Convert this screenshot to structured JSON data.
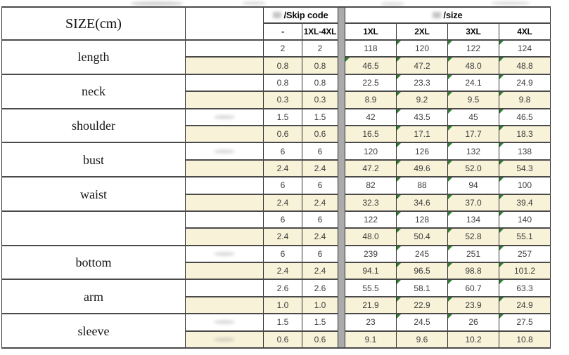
{
  "chart_data": {
    "type": "table",
    "title": "SIZE(cm)",
    "header": {
      "size_label": "SIZE(cm)",
      "skip_code_label": "/Skip code",
      "size_section_label": "/size",
      "skip_cols": [
        "-",
        "1XL-4XL"
      ],
      "size_cols": [
        "1XL",
        "2XL",
        "3XL",
        "4XL"
      ]
    },
    "groups": [
      {
        "label": "length",
        "rows": [
          {
            "skip": [
              "2",
              "2"
            ],
            "sizes": [
              "118",
              "120",
              "122",
              "124"
            ],
            "tri": "0111",
            "smudge": false
          },
          {
            "skip": [
              "0.8",
              "0.8"
            ],
            "sizes": [
              "46.5",
              "47.2",
              "48.0",
              "48.8"
            ],
            "tri": "1111",
            "smudge": false
          }
        ]
      },
      {
        "label": "neck",
        "rows": [
          {
            "skip": [
              "0.8",
              "0.8"
            ],
            "sizes": [
              "22.5",
              "23.3",
              "24.1",
              "24.9"
            ],
            "tri": "0111",
            "smudge": false
          },
          {
            "skip": [
              "0.3",
              "0.3"
            ],
            "sizes": [
              "8.9",
              "9.2",
              "9.5",
              "9.8"
            ],
            "tri": "0111",
            "smudge": false
          }
        ]
      },
      {
        "label": "shoulder",
        "rows": [
          {
            "skip": [
              "1.5",
              "1.5"
            ],
            "sizes": [
              "42",
              "43.5",
              "45",
              "46.5"
            ],
            "tri": "0111",
            "smudge": true
          },
          {
            "skip": [
              "0.6",
              "0.6"
            ],
            "sizes": [
              "16.5",
              "17.1",
              "17.7",
              "18.3"
            ],
            "tri": "0111",
            "smudge": false
          }
        ]
      },
      {
        "label": "bust",
        "rows": [
          {
            "skip": [
              "6",
              "6"
            ],
            "sizes": [
              "120",
              "126",
              "132",
              "138"
            ],
            "tri": "0111",
            "smudge": true
          },
          {
            "skip": [
              "2.4",
              "2.4"
            ],
            "sizes": [
              "47.2",
              "49.6",
              "52.0",
              "54.3"
            ],
            "tri": "0111",
            "smudge": false
          }
        ]
      },
      {
        "label": "waist",
        "rows": [
          {
            "skip": [
              "6",
              "6"
            ],
            "sizes": [
              "82",
              "88",
              "94",
              "100"
            ],
            "tri": "0111",
            "smudge": false
          },
          {
            "skip": [
              "2.4",
              "2.4"
            ],
            "sizes": [
              "32.3",
              "34.6",
              "37.0",
              "39.4"
            ],
            "tri": "0111",
            "smudge": false
          }
        ]
      },
      {
        "label": "",
        "rows": [
          {
            "skip": [
              "6",
              "6"
            ],
            "sizes": [
              "122",
              "128",
              "134",
              "140"
            ],
            "tri": "0111",
            "smudge": false
          },
          {
            "skip": [
              "2.4",
              "2.4"
            ],
            "sizes": [
              "48.0",
              "50.4",
              "52.8",
              "55.1"
            ],
            "tri": "0111",
            "smudge": false
          }
        ]
      },
      {
        "label": "bottom",
        "rows": [
          {
            "skip": [
              "6",
              "6"
            ],
            "sizes": [
              "239",
              "245",
              "251",
              "257"
            ],
            "tri": "0111",
            "smudge": true
          },
          {
            "skip": [
              "2.4",
              "2.4"
            ],
            "sizes": [
              "94.1",
              "96.5",
              "98.8",
              "101.2"
            ],
            "tri": "0111",
            "smudge": false
          }
        ]
      },
      {
        "label": "arm",
        "rows": [
          {
            "skip": [
              "2.6",
              "2.6"
            ],
            "sizes": [
              "55.5",
              "58.1",
              "60.7",
              "63.3"
            ],
            "tri": "0111",
            "smudge": false
          },
          {
            "skip": [
              "1.0",
              "1.0"
            ],
            "sizes": [
              "21.9",
              "22.9",
              "23.9",
              "24.9"
            ],
            "tri": "0111",
            "smudge": false
          }
        ]
      },
      {
        "label": "sleeve",
        "rows": [
          {
            "skip": [
              "1.5",
              "1.5"
            ],
            "sizes": [
              "23",
              "24.5",
              "26",
              "27.5"
            ],
            "tri": "0111",
            "smudge": true
          },
          {
            "skip": [
              "0.6",
              "0.6"
            ],
            "sizes": [
              "9.1",
              "9.6",
              "10.2",
              "10.8"
            ],
            "tri": "0000",
            "smudge": true
          }
        ]
      }
    ],
    "colors": {
      "row_alt_beige": "#f8f2d9",
      "green_triangle_marker": "#2f7e32",
      "section_divider_gray": "#ababab",
      "grid_line": "#4a4a4a",
      "number_text": "#3d3d3d"
    }
  }
}
